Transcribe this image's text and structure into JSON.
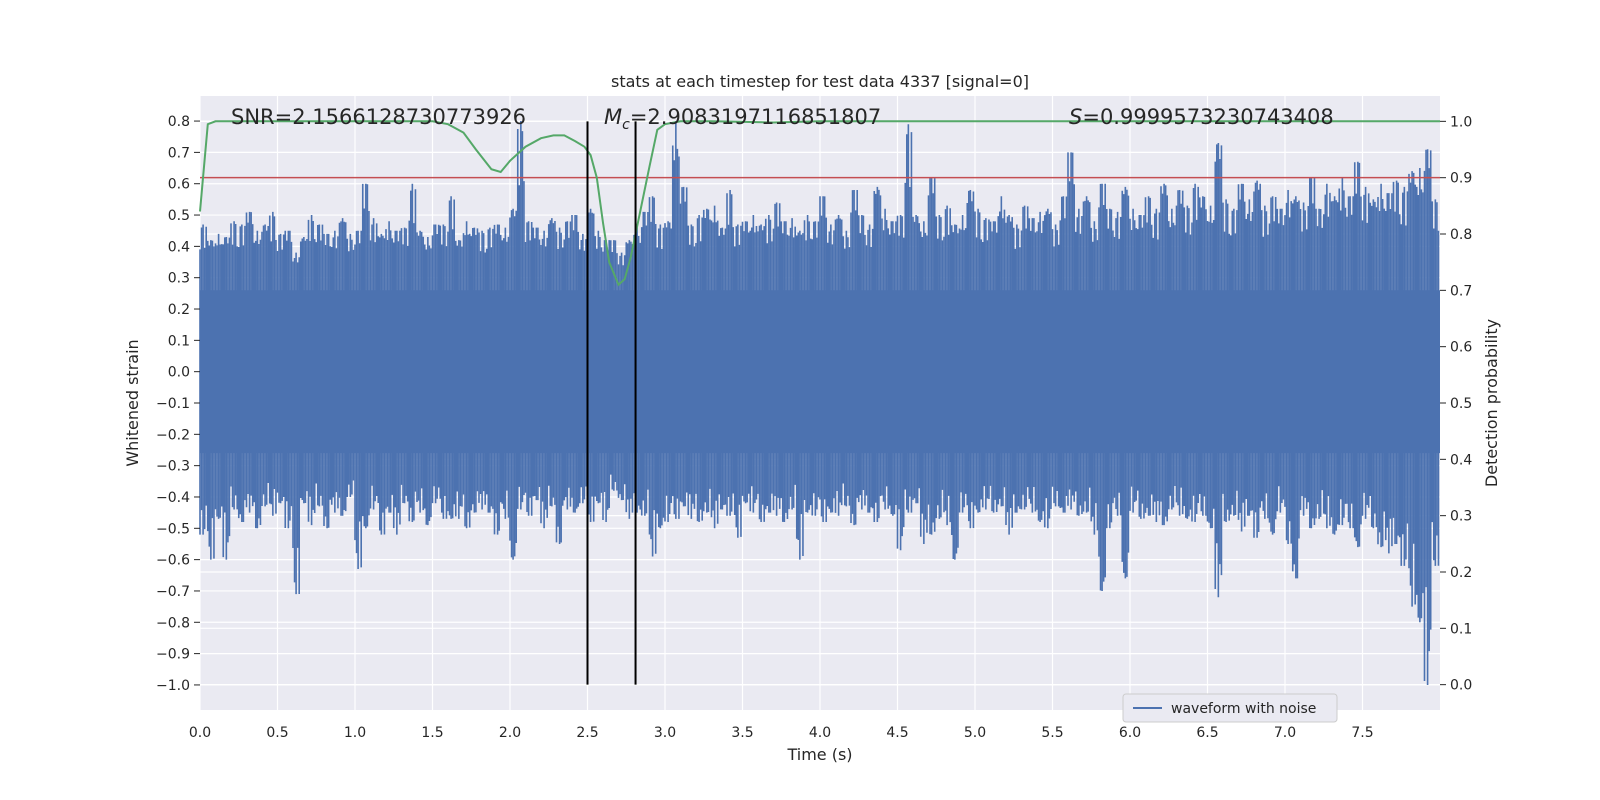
{
  "chart_data": {
    "type": "line",
    "title": "stats at each timestep for test data 4337 [signal=0]",
    "xlabel": "Time (s)",
    "ylabel": "Whitened strain",
    "y2label": "Detection probability",
    "xlim": [
      0.0,
      8.0
    ],
    "ylim": [
      -1.08,
      0.88
    ],
    "y2lim": [
      -0.045,
      1.045
    ],
    "grid": true,
    "xticks": [
      0.0,
      0.5,
      1.0,
      1.5,
      2.0,
      2.5,
      3.0,
      3.5,
      4.0,
      4.5,
      5.0,
      5.5,
      6.0,
      6.5,
      7.0,
      7.5
    ],
    "xtick_labels": [
      "0.0",
      "0.5",
      "1.0",
      "1.5",
      "2.0",
      "2.5",
      "3.0",
      "3.5",
      "4.0",
      "4.5",
      "5.0",
      "5.5",
      "6.0",
      "6.5",
      "7.0",
      "7.5"
    ],
    "yticks": [
      0.8,
      0.7,
      0.6,
      0.5,
      0.4,
      0.3,
      0.2,
      0.1,
      0.0,
      -0.1,
      -0.2,
      -0.3,
      -0.4,
      -0.5,
      -0.6,
      -0.7,
      -0.8,
      -0.9,
      -1.0
    ],
    "ytick_labels": [
      "0.8",
      "0.7",
      "0.6",
      "0.5",
      "0.4",
      "0.3",
      "0.2",
      "0.1",
      "0.0",
      "−0.1",
      "−0.2",
      "−0.3",
      "−0.4",
      "−0.5",
      "−0.6",
      "−0.7",
      "−0.8",
      "−0.9",
      "−1.0"
    ],
    "y2ticks": [
      1.0,
      0.9,
      0.8,
      0.7,
      0.6,
      0.5,
      0.4,
      0.3,
      0.2,
      0.1,
      0.0
    ],
    "y2tick_labels": [
      "1.0",
      "0.9",
      "0.8",
      "0.7",
      "0.6",
      "0.5",
      "0.4",
      "0.3",
      "0.2",
      "0.1",
      "0.0"
    ],
    "annotations": {
      "snr": "SNR=2.1566128730773926",
      "mc_symbol": "M",
      "mc_sub": "c",
      "mc_value": "=2.9083197116851807",
      "s_symbol": "S",
      "s_value": "=0.9999573230743408"
    },
    "legend": {
      "label": "waveform with noise",
      "position": "lower-right"
    },
    "series": [
      {
        "name": "waveform with noise",
        "axis": "left",
        "color": "#4c72b0",
        "band_upper": 0.26,
        "band_lower": -0.26,
        "spikes": [
          [
            0.0,
            0.47,
            -0.52
          ],
          [
            0.05,
            0.42,
            -0.6
          ],
          [
            0.1,
            0.44,
            -0.47
          ],
          [
            0.15,
            0.43,
            -0.6
          ],
          [
            0.2,
            0.48,
            -0.44
          ],
          [
            0.25,
            0.47,
            -0.48
          ],
          [
            0.3,
            0.51,
            -0.45
          ],
          [
            0.35,
            0.45,
            -0.5
          ],
          [
            0.4,
            0.47,
            -0.43
          ],
          [
            0.45,
            0.51,
            -0.46
          ],
          [
            0.5,
            0.44,
            -0.42
          ],
          [
            0.55,
            0.45,
            -0.5
          ],
          [
            0.6,
            0.38,
            -0.71
          ],
          [
            0.65,
            0.43,
            -0.42
          ],
          [
            0.7,
            0.5,
            -0.49
          ],
          [
            0.75,
            0.47,
            -0.43
          ],
          [
            0.8,
            0.44,
            -0.5
          ],
          [
            0.85,
            0.45,
            -0.45
          ],
          [
            0.9,
            0.49,
            -0.46
          ],
          [
            0.95,
            0.44,
            -0.4
          ],
          [
            1.0,
            0.45,
            -0.63
          ],
          [
            1.05,
            0.6,
            -0.5
          ],
          [
            1.1,
            0.49,
            -0.44
          ],
          [
            1.15,
            0.44,
            -0.52
          ],
          [
            1.2,
            0.48,
            -0.45
          ],
          [
            1.25,
            0.45,
            -0.52
          ],
          [
            1.3,
            0.46,
            -0.42
          ],
          [
            1.35,
            0.6,
            -0.48
          ],
          [
            1.4,
            0.45,
            -0.45
          ],
          [
            1.45,
            0.43,
            -0.49
          ],
          [
            1.5,
            0.47,
            -0.42
          ],
          [
            1.55,
            0.47,
            -0.47
          ],
          [
            1.6,
            0.56,
            -0.47
          ],
          [
            1.65,
            0.42,
            -0.47
          ],
          [
            1.7,
            0.48,
            -0.5
          ],
          [
            1.75,
            0.46,
            -0.45
          ],
          [
            1.8,
            0.45,
            -0.44
          ],
          [
            1.85,
            0.46,
            -0.45
          ],
          [
            1.9,
            0.47,
            -0.52
          ],
          [
            1.95,
            0.46,
            -0.47
          ],
          [
            2.0,
            0.52,
            -0.6
          ],
          [
            2.05,
            0.8,
            -0.44
          ],
          [
            2.1,
            0.48,
            -0.46
          ],
          [
            2.15,
            0.46,
            -0.41
          ],
          [
            2.2,
            0.45,
            -0.5
          ],
          [
            2.25,
            0.49,
            -0.43
          ],
          [
            2.3,
            0.46,
            -0.55
          ],
          [
            2.35,
            0.48,
            -0.44
          ],
          [
            2.4,
            0.5,
            -0.45
          ],
          [
            2.45,
            0.44,
            -0.42
          ],
          [
            2.5,
            0.52,
            -0.48
          ],
          [
            2.55,
            0.45,
            -0.42
          ],
          [
            2.6,
            0.42,
            -0.48
          ],
          [
            2.65,
            0.42,
            -0.38
          ],
          [
            2.7,
            0.38,
            -0.41
          ],
          [
            2.75,
            0.42,
            -0.47
          ],
          [
            2.8,
            0.46,
            -0.45
          ],
          [
            2.85,
            0.51,
            -0.46
          ],
          [
            2.9,
            0.56,
            -0.59
          ],
          [
            2.95,
            0.47,
            -0.5
          ],
          [
            3.0,
            0.48,
            -0.48
          ],
          [
            3.05,
            0.8,
            -0.47
          ],
          [
            3.1,
            0.59,
            -0.43
          ],
          [
            3.15,
            0.47,
            -0.47
          ],
          [
            3.2,
            0.5,
            -0.48
          ],
          [
            3.25,
            0.52,
            -0.45
          ],
          [
            3.3,
            0.53,
            -0.5
          ],
          [
            3.35,
            0.46,
            -0.44
          ],
          [
            3.4,
            0.58,
            -0.46
          ],
          [
            3.45,
            0.47,
            -0.53
          ],
          [
            3.5,
            0.48,
            -0.42
          ],
          [
            3.55,
            0.5,
            -0.45
          ],
          [
            3.6,
            0.47,
            -0.48
          ],
          [
            3.65,
            0.5,
            -0.45
          ],
          [
            3.7,
            0.54,
            -0.46
          ],
          [
            3.75,
            0.48,
            -0.48
          ],
          [
            3.8,
            0.49,
            -0.44
          ],
          [
            3.85,
            0.45,
            -0.6
          ],
          [
            3.9,
            0.5,
            -0.45
          ],
          [
            3.95,
            0.48,
            -0.46
          ],
          [
            4.0,
            0.56,
            -0.48
          ],
          [
            4.05,
            0.47,
            -0.45
          ],
          [
            4.1,
            0.5,
            -0.46
          ],
          [
            4.15,
            0.45,
            -0.43
          ],
          [
            4.2,
            0.58,
            -0.49
          ],
          [
            4.25,
            0.5,
            -0.44
          ],
          [
            4.3,
            0.47,
            -0.45
          ],
          [
            4.35,
            0.59,
            -0.48
          ],
          [
            4.4,
            0.52,
            -0.44
          ],
          [
            4.45,
            0.48,
            -0.46
          ],
          [
            4.5,
            0.5,
            -0.57
          ],
          [
            4.55,
            0.79,
            -0.45
          ],
          [
            4.6,
            0.5,
            -0.42
          ],
          [
            4.65,
            0.48,
            -0.55
          ],
          [
            4.7,
            0.62,
            -0.52
          ],
          [
            4.75,
            0.5,
            -0.47
          ],
          [
            4.8,
            0.53,
            -0.49
          ],
          [
            4.85,
            0.47,
            -0.6
          ],
          [
            4.9,
            0.5,
            -0.45
          ],
          [
            4.95,
            0.58,
            -0.5
          ],
          [
            5.0,
            0.52,
            -0.45
          ],
          [
            5.05,
            0.49,
            -0.44
          ],
          [
            5.1,
            0.48,
            -0.45
          ],
          [
            5.15,
            0.56,
            -0.43
          ],
          [
            5.2,
            0.5,
            -0.52
          ],
          [
            5.25,
            0.47,
            -0.45
          ],
          [
            5.3,
            0.53,
            -0.44
          ],
          [
            5.35,
            0.49,
            -0.45
          ],
          [
            5.4,
            0.51,
            -0.48
          ],
          [
            5.45,
            0.52,
            -0.5
          ],
          [
            5.5,
            0.47,
            -0.43
          ],
          [
            5.55,
            0.56,
            -0.45
          ],
          [
            5.6,
            0.7,
            -0.44
          ],
          [
            5.65,
            0.52,
            -0.46
          ],
          [
            5.7,
            0.56,
            -0.45
          ],
          [
            5.75,
            0.48,
            -0.52
          ],
          [
            5.8,
            0.6,
            -0.7
          ],
          [
            5.85,
            0.52,
            -0.5
          ],
          [
            5.9,
            0.51,
            -0.46
          ],
          [
            5.95,
            0.59,
            -0.66
          ],
          [
            6.0,
            0.52,
            -0.45
          ],
          [
            6.05,
            0.5,
            -0.47
          ],
          [
            6.1,
            0.56,
            -0.46
          ],
          [
            6.15,
            0.52,
            -0.48
          ],
          [
            6.2,
            0.6,
            -0.49
          ],
          [
            6.25,
            0.52,
            -0.44
          ],
          [
            6.3,
            0.58,
            -0.46
          ],
          [
            6.35,
            0.53,
            -0.47
          ],
          [
            6.4,
            0.6,
            -0.48
          ],
          [
            6.45,
            0.56,
            -0.46
          ],
          [
            6.5,
            0.53,
            -0.5
          ],
          [
            6.55,
            0.73,
            -0.72
          ],
          [
            6.6,
            0.55,
            -0.48
          ],
          [
            6.65,
            0.52,
            -0.46
          ],
          [
            6.7,
            0.6,
            -0.51
          ],
          [
            6.75,
            0.55,
            -0.46
          ],
          [
            6.8,
            0.61,
            -0.53
          ],
          [
            6.85,
            0.53,
            -0.47
          ],
          [
            6.9,
            0.56,
            -0.52
          ],
          [
            6.95,
            0.52,
            -0.45
          ],
          [
            7.0,
            0.58,
            -0.55
          ],
          [
            7.05,
            0.56,
            -0.66
          ],
          [
            7.1,
            0.54,
            -0.46
          ],
          [
            7.15,
            0.62,
            -0.5
          ],
          [
            7.2,
            0.52,
            -0.47
          ],
          [
            7.25,
            0.6,
            -0.5
          ],
          [
            7.3,
            0.56,
            -0.52
          ],
          [
            7.35,
            0.62,
            -0.49
          ],
          [
            7.4,
            0.56,
            -0.5
          ],
          [
            7.45,
            0.67,
            -0.56
          ],
          [
            7.5,
            0.59,
            -0.47
          ],
          [
            7.55,
            0.55,
            -0.5
          ],
          [
            7.6,
            0.6,
            -0.56
          ],
          [
            7.65,
            0.57,
            -0.58
          ],
          [
            7.7,
            0.61,
            -0.55
          ],
          [
            7.75,
            0.59,
            -0.62
          ],
          [
            7.8,
            0.64,
            -0.75
          ],
          [
            7.85,
            0.65,
            -0.8
          ],
          [
            7.9,
            0.71,
            -1.0
          ],
          [
            7.95,
            0.55,
            -0.62
          ]
        ]
      },
      {
        "name": "detection probability",
        "axis": "right",
        "color": "#55a868",
        "x": [
          0.0,
          0.05,
          0.1,
          0.2,
          0.4,
          0.8,
          1.2,
          1.5,
          1.6,
          1.7,
          1.78,
          1.88,
          1.94,
          2.0,
          2.1,
          2.2,
          2.28,
          2.35,
          2.42,
          2.48,
          2.52,
          2.56,
          2.6,
          2.64,
          2.7,
          2.74,
          2.78,
          2.84,
          2.9,
          2.95,
          3.0,
          3.1,
          3.3,
          3.7,
          4.0,
          4.5,
          5.0,
          6.0,
          7.0,
          8.0
        ],
        "y": [
          0.84,
          0.995,
          1.0,
          1.0,
          1.0,
          1.0,
          1.0,
          1.0,
          0.995,
          0.98,
          0.95,
          0.915,
          0.91,
          0.93,
          0.955,
          0.97,
          0.975,
          0.975,
          0.965,
          0.955,
          0.94,
          0.9,
          0.82,
          0.75,
          0.71,
          0.72,
          0.76,
          0.84,
          0.92,
          0.985,
          0.995,
          1.0,
          1.0,
          0.998,
          1.0,
          1.0,
          1.0,
          1.0,
          1.0,
          1.0
        ]
      }
    ],
    "threshold": {
      "axis": "right",
      "value": 0.9,
      "color": "#c44e52"
    },
    "vlines": [
      {
        "x": 2.5,
        "color": "#000000"
      },
      {
        "x": 2.81,
        "color": "#000000"
      }
    ]
  }
}
